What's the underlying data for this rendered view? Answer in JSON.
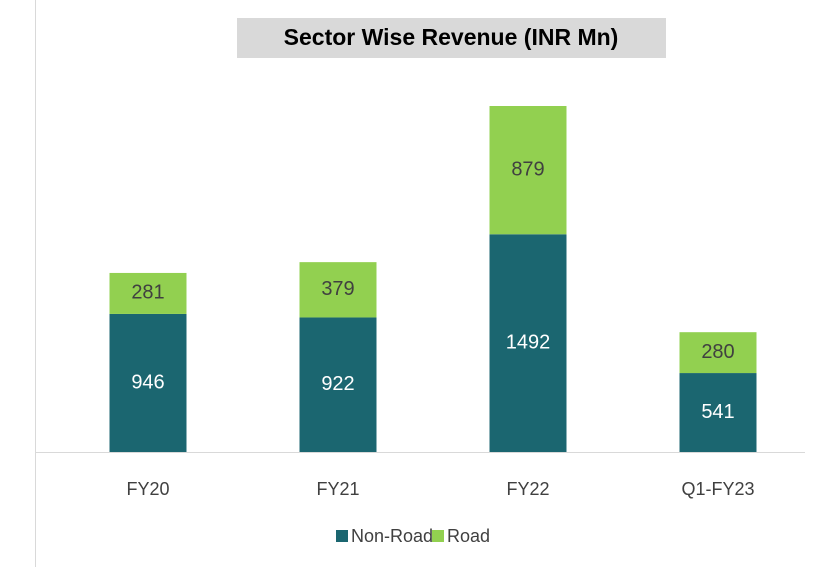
{
  "chart_data": {
    "type": "stacked-bar",
    "title": "Sector Wise Revenue (INR Mn)",
    "categories": [
      "FY20",
      "FY21",
      "FY22",
      "Q1-FY23"
    ],
    "series": [
      {
        "name": "Non-Road",
        "color": "#1b6670",
        "values": [
          946,
          922,
          1492,
          541
        ]
      },
      {
        "name": "Road",
        "color": "#92d050",
        "values": [
          281,
          379,
          879,
          280
        ]
      }
    ],
    "legend": "bottom"
  }
}
